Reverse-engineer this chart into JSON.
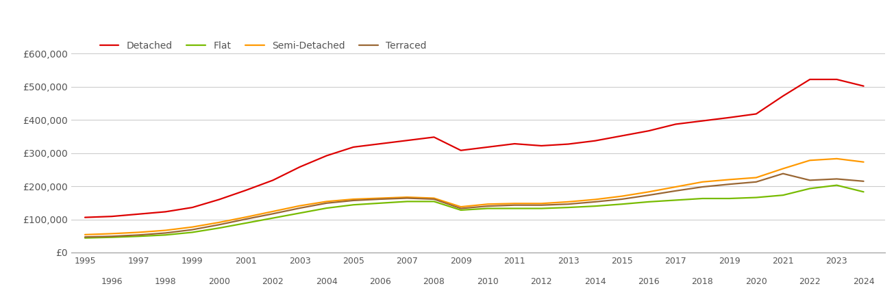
{
  "legend_labels": [
    "Detached",
    "Flat",
    "Semi-Detached",
    "Terraced"
  ],
  "line_colors": {
    "Detached": "#dd0000",
    "Flat": "#77bb00",
    "Semi-Detached": "#ff9900",
    "Terraced": "#996633"
  },
  "years": [
    1995,
    1996,
    1997,
    1998,
    1999,
    2000,
    2001,
    2002,
    2003,
    2004,
    2005,
    2006,
    2007,
    2008,
    2009,
    2010,
    2011,
    2012,
    2013,
    2014,
    2015,
    2016,
    2017,
    2018,
    2019,
    2020,
    2021,
    2022,
    2023,
    2024
  ],
  "Detached": [
    106000,
    109000,
    116000,
    123000,
    136000,
    160000,
    188000,
    218000,
    258000,
    292000,
    318000,
    328000,
    338000,
    348000,
    308000,
    318000,
    328000,
    322000,
    327000,
    337000,
    352000,
    367000,
    387000,
    397000,
    407000,
    418000,
    472000,
    522000,
    522000,
    502000
  ],
  "Flat": [
    44000,
    46000,
    49000,
    53000,
    61000,
    74000,
    89000,
    104000,
    119000,
    134000,
    144000,
    149000,
    154000,
    154000,
    128000,
    133000,
    133000,
    133000,
    136000,
    140000,
    146000,
    153000,
    158000,
    163000,
    163000,
    166000,
    173000,
    193000,
    203000,
    183000
  ],
  "Semi-Detached": [
    54000,
    57000,
    61000,
    67000,
    77000,
    91000,
    107000,
    124000,
    141000,
    154000,
    161000,
    164000,
    167000,
    164000,
    138000,
    146000,
    148000,
    148000,
    153000,
    160000,
    170000,
    183000,
    198000,
    213000,
    220000,
    226000,
    253000,
    278000,
    283000,
    273000
  ],
  "Terraced": [
    47000,
    49000,
    53000,
    59000,
    69000,
    84000,
    101000,
    117000,
    134000,
    149000,
    157000,
    161000,
    164000,
    161000,
    133000,
    140000,
    143000,
    143000,
    146000,
    153000,
    161000,
    173000,
    186000,
    198000,
    206000,
    213000,
    238000,
    218000,
    222000,
    215000
  ],
  "ylim": [
    0,
    650000
  ],
  "yticks": [
    0,
    100000,
    200000,
    300000,
    400000,
    500000,
    600000
  ],
  "xlim": [
    1994.5,
    2024.8
  ],
  "xticks_odd": [
    1995,
    1997,
    1999,
    2001,
    2003,
    2005,
    2007,
    2009,
    2011,
    2013,
    2015,
    2017,
    2019,
    2021,
    2023
  ],
  "xticks_even": [
    1996,
    1998,
    2000,
    2002,
    2004,
    2006,
    2008,
    2010,
    2012,
    2014,
    2016,
    2018,
    2020,
    2022,
    2024
  ],
  "background_color": "#ffffff",
  "grid_color": "#cccccc",
  "line_width": 1.6,
  "tick_label_color": "#555555",
  "tick_fontsize": 9
}
